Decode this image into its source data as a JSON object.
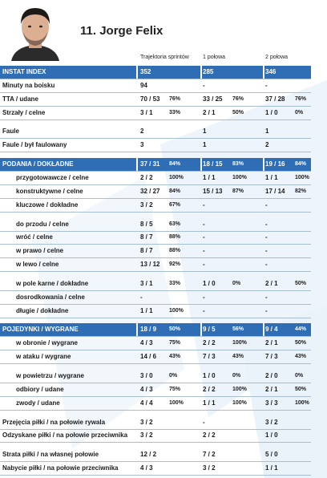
{
  "player": {
    "name": "11.  Jorge Felix"
  },
  "columns": [
    "Trajektoria sprintów",
    "1 połowa",
    "2 połowa"
  ],
  "groups": [
    {
      "rows": [
        {
          "label": "INSTAT INDEX",
          "highlight": true,
          "cells": [
            {
              "value": "352"
            },
            {
              "value": "285"
            },
            {
              "value": "346"
            }
          ]
        },
        {
          "label": "Minuty na boisku",
          "cells": [
            {
              "value": "94"
            },
            {
              "value": "-"
            },
            {
              "value": "-"
            }
          ]
        },
        {
          "label": "TTA / udane",
          "cells": [
            {
              "value": "70 / 53",
              "percent": "76%"
            },
            {
              "value": "33 / 25",
              "percent": "76%"
            },
            {
              "value": "37 / 28",
              "percent": "76%"
            }
          ]
        },
        {
          "label": "Strzały / celne",
          "cells": [
            {
              "value": "3 / 1",
              "percent": "33%"
            },
            {
              "value": "2 / 1",
              "percent": "50%"
            },
            {
              "value": "1 / 0",
              "percent": "0%"
            }
          ]
        }
      ]
    },
    {
      "rows": [
        {
          "label": "Faule",
          "cells": [
            {
              "value": "2"
            },
            {
              "value": "1"
            },
            {
              "value": "1"
            }
          ]
        },
        {
          "label": "Faule / był faulowany",
          "cells": [
            {
              "value": "3"
            },
            {
              "value": "1"
            },
            {
              "value": "2"
            }
          ]
        }
      ]
    },
    {
      "rows": [
        {
          "label": "PODANIA / DOKŁADNE",
          "highlight": true,
          "cells": [
            {
              "value": "37 / 31",
              "percent": "84%"
            },
            {
              "value": "18 / 15",
              "percent": "83%"
            },
            {
              "value": "19 / 16",
              "percent": "84%"
            }
          ]
        },
        {
          "label": "przygotowawcze / celne",
          "indent": true,
          "cells": [
            {
              "value": "2 / 2",
              "percent": "100%"
            },
            {
              "value": "1 / 1",
              "percent": "100%"
            },
            {
              "value": "1 / 1",
              "percent": "100%"
            }
          ]
        },
        {
          "label": "konstruktywne / celne",
          "indent": true,
          "cells": [
            {
              "value": "32 / 27",
              "percent": "84%"
            },
            {
              "value": "15 / 13",
              "percent": "87%"
            },
            {
              "value": "17 / 14",
              "percent": "82%"
            }
          ]
        },
        {
          "label": "kluczowe / dokładne",
          "indent": true,
          "cells": [
            {
              "value": "3 / 2",
              "percent": "67%"
            },
            {
              "value": "-"
            },
            {
              "value": "-"
            }
          ]
        }
      ]
    },
    {
      "rows": [
        {
          "label": "do przodu / celne",
          "indent": true,
          "cells": [
            {
              "value": "8 / 5",
              "percent": "63%"
            },
            {
              "value": "-"
            },
            {
              "value": "-"
            }
          ]
        },
        {
          "label": "wróć / celne",
          "indent": true,
          "cells": [
            {
              "value": "8 / 7",
              "percent": "88%"
            },
            {
              "value": "-"
            },
            {
              "value": "-"
            }
          ]
        },
        {
          "label": "w prawo / celne",
          "indent": true,
          "cells": [
            {
              "value": "8 / 7",
              "percent": "88%"
            },
            {
              "value": "-"
            },
            {
              "value": "-"
            }
          ]
        },
        {
          "label": "w lewo / celne",
          "indent": true,
          "cells": [
            {
              "value": "13 / 12",
              "percent": "92%"
            },
            {
              "value": "-"
            },
            {
              "value": "-"
            }
          ]
        }
      ]
    },
    {
      "rows": [
        {
          "label": "w pole karne / dokładne",
          "indent": true,
          "cells": [
            {
              "value": "3 / 1",
              "percent": "33%"
            },
            {
              "value": "1 / 0",
              "percent": "0%"
            },
            {
              "value": "2 / 1",
              "percent": "50%"
            }
          ]
        },
        {
          "label": "dosrodkowania / celne",
          "indent": true,
          "cells": [
            {
              "value": "-"
            },
            {
              "value": "-"
            },
            {
              "value": "-"
            }
          ]
        },
        {
          "label": "długie / dokładne",
          "indent": true,
          "cells": [
            {
              "value": "1 / 1",
              "percent": "100%"
            },
            {
              "value": "-"
            },
            {
              "value": "-"
            }
          ]
        }
      ]
    },
    {
      "rows": [
        {
          "label": "POJEDYNKI / WYGRANE",
          "highlight": true,
          "cells": [
            {
              "value": "18 / 9",
              "percent": "50%"
            },
            {
              "value": "9 / 5",
              "percent": "56%"
            },
            {
              "value": "9 / 4",
              "percent": "44%"
            }
          ]
        },
        {
          "label": "w obronie / wygrane",
          "indent": true,
          "cells": [
            {
              "value": "4 / 3",
              "percent": "75%"
            },
            {
              "value": "2 / 2",
              "percent": "100%"
            },
            {
              "value": "2 / 1",
              "percent": "50%"
            }
          ]
        },
        {
          "label": "w ataku / wygrane",
          "indent": true,
          "cells": [
            {
              "value": "14 / 6",
              "percent": "43%"
            },
            {
              "value": "7 / 3",
              "percent": "43%"
            },
            {
              "value": "7 / 3",
              "percent": "43%"
            }
          ]
        }
      ]
    },
    {
      "rows": [
        {
          "label": "w powietrzu / wygrane",
          "indent": true,
          "cells": [
            {
              "value": "3 / 0",
              "percent": "0%"
            },
            {
              "value": "1 / 0",
              "percent": "0%"
            },
            {
              "value": "2 / 0",
              "percent": "0%"
            }
          ]
        },
        {
          "label": "odbiory / udane",
          "indent": true,
          "cells": [
            {
              "value": "4 / 3",
              "percent": "75%"
            },
            {
              "value": "2 / 2",
              "percent": "100%"
            },
            {
              "value": "2 / 1",
              "percent": "50%"
            }
          ]
        },
        {
          "label": "zwody / udane",
          "indent": true,
          "cells": [
            {
              "value": "4 / 4",
              "percent": "100%"
            },
            {
              "value": "1 / 1",
              "percent": "100%"
            },
            {
              "value": "3 / 3",
              "percent": "100%"
            }
          ]
        }
      ]
    },
    {
      "rows": [
        {
          "label": "Przejęcia piłki / na połowie rywala",
          "cells": [
            {
              "value": "3 / 2"
            },
            {
              "value": "-"
            },
            {
              "value": "3 / 2"
            }
          ]
        },
        {
          "label": "Odzyskane piłki / na połowie przeciwnika",
          "cells": [
            {
              "value": "3 / 2"
            },
            {
              "value": "2 / 2"
            },
            {
              "value": "1 / 0"
            }
          ]
        }
      ]
    },
    {
      "rows": [
        {
          "label": "Strata piłki / na własnej połowie",
          "cells": [
            {
              "value": "12 / 2"
            },
            {
              "value": "7 / 2"
            },
            {
              "value": "5 / 0"
            }
          ]
        },
        {
          "label": "Nabycie piłki / na połowie przeciwnika",
          "cells": [
            {
              "value": "4 / 3"
            },
            {
              "value": "3 / 2"
            },
            {
              "value": "1 / 1"
            }
          ]
        }
      ]
    }
  ]
}
